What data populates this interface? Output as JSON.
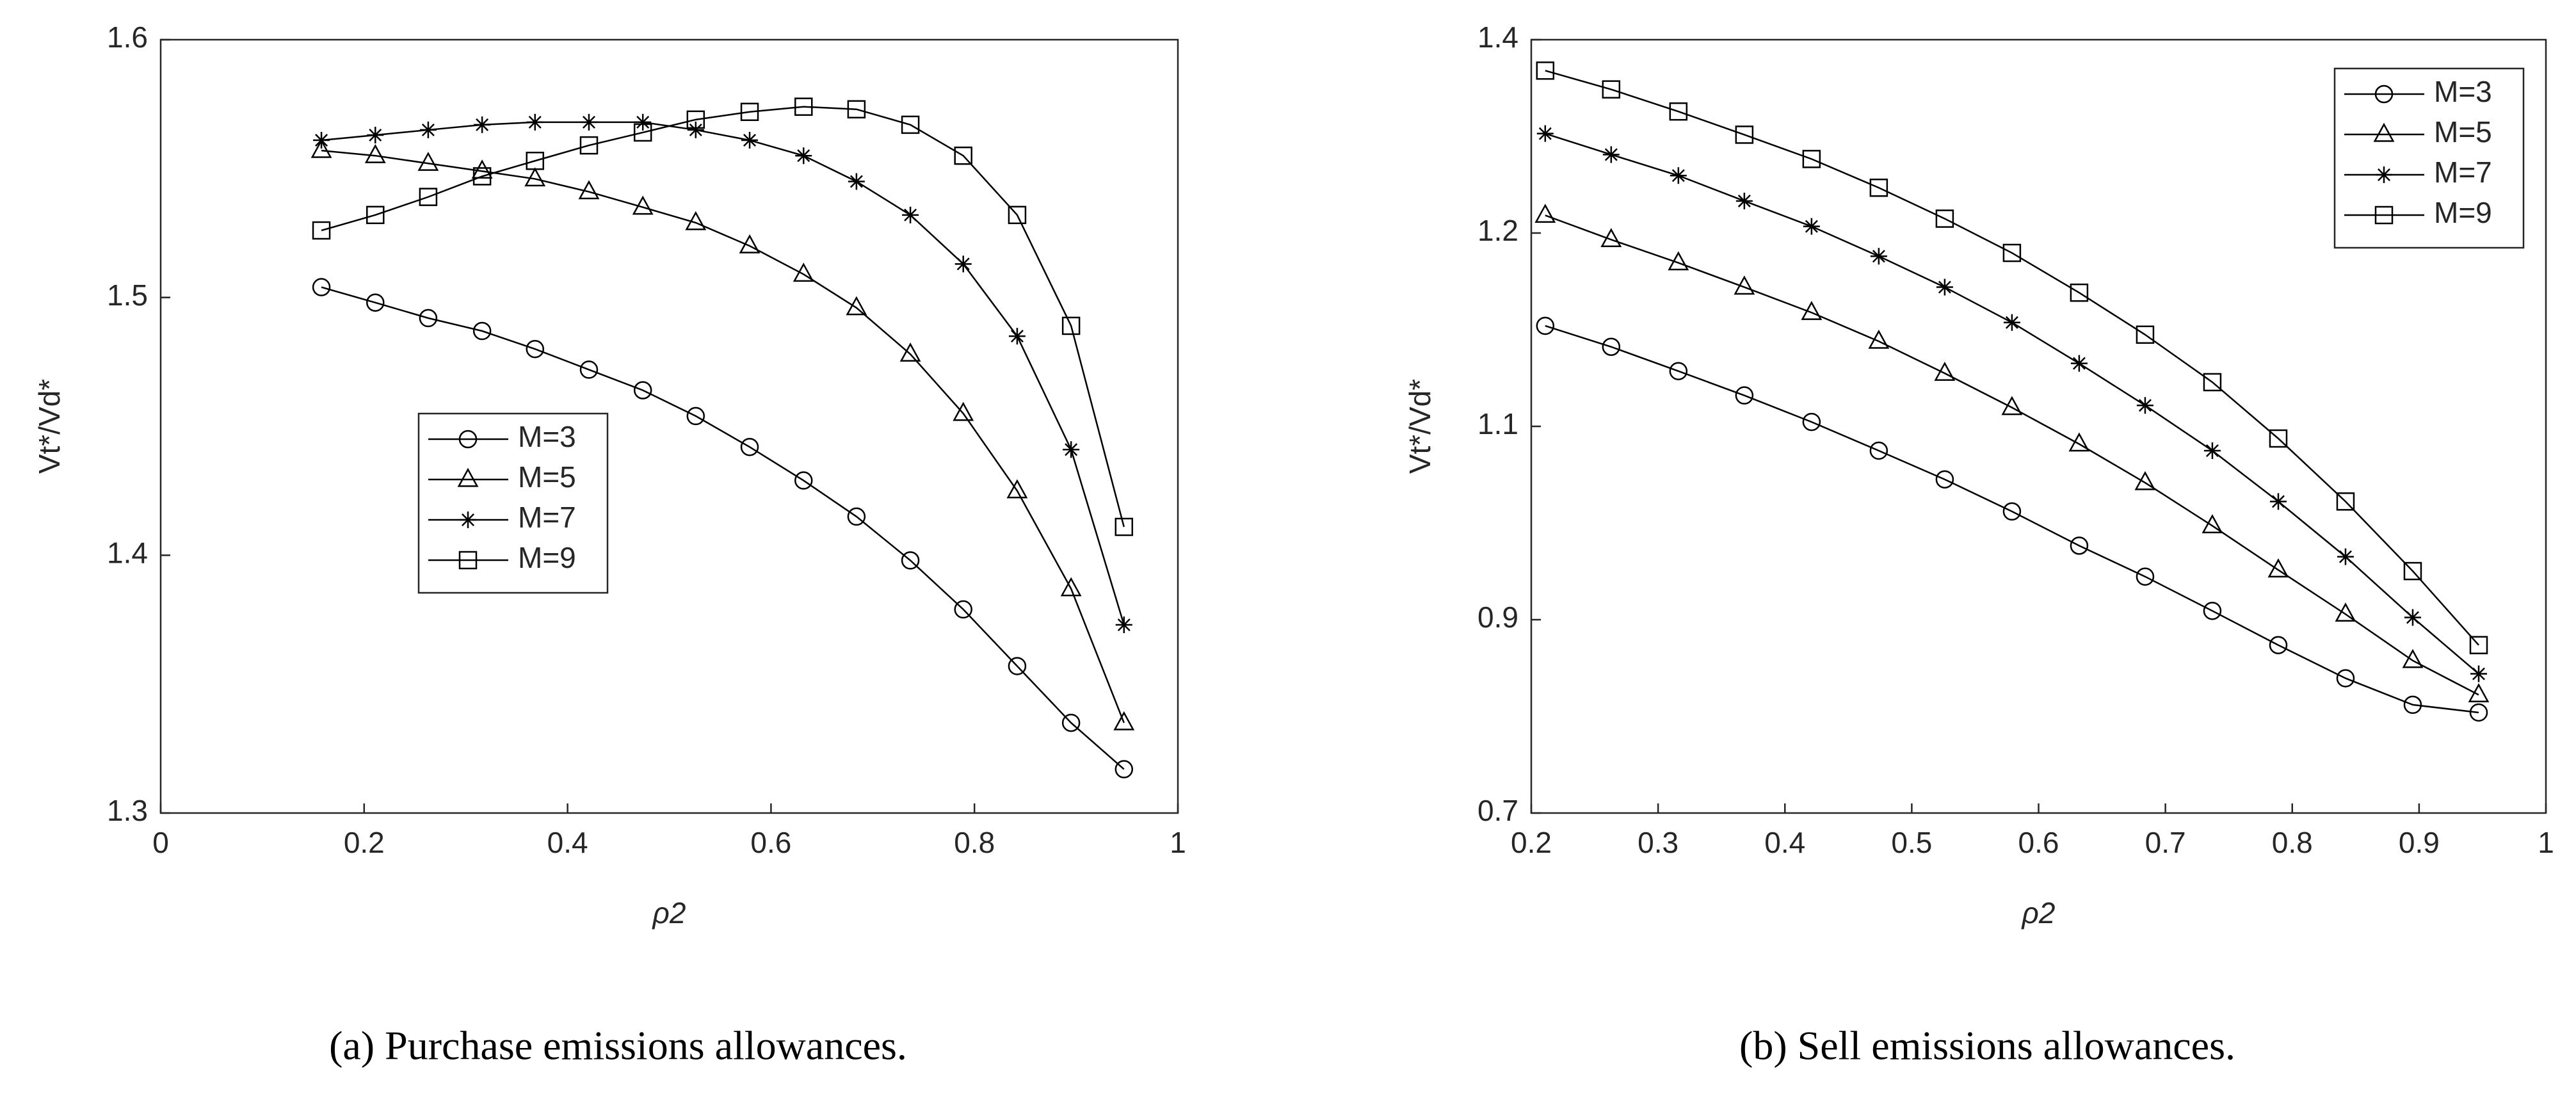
{
  "chart_data": [
    {
      "type": "line",
      "caption": "(a) Purchase emissions allowances.",
      "xlabel": "ρ2",
      "ylabel": "Vt*/Vd*",
      "xlim": [
        0,
        1
      ],
      "xticks": [
        0,
        0.2,
        0.4,
        0.6,
        0.8,
        1
      ],
      "ylim": [
        1.3,
        1.6
      ],
      "yticks": [
        1.3,
        1.4,
        1.5,
        1.6
      ],
      "legend": "west",
      "x": [
        0.158,
        0.211,
        0.263,
        0.316,
        0.368,
        0.421,
        0.474,
        0.526,
        0.579,
        0.632,
        0.684,
        0.737,
        0.789,
        0.842,
        0.895,
        0.947
      ],
      "series": [
        {
          "name": "M=3",
          "color": "#000000",
          "marker": "circle",
          "values": [
            1.504,
            1.498,
            1.492,
            1.487,
            1.48,
            1.472,
            1.464,
            1.454,
            1.442,
            1.429,
            1.415,
            1.398,
            1.379,
            1.357,
            1.335,
            1.317
          ]
        },
        {
          "name": "M=5",
          "color": "#000000",
          "marker": "triangle",
          "values": [
            1.557,
            1.555,
            1.552,
            1.549,
            1.546,
            1.541,
            1.535,
            1.529,
            1.52,
            1.509,
            1.496,
            1.478,
            1.455,
            1.425,
            1.387,
            1.335
          ]
        },
        {
          "name": "M=7",
          "color": "#000000",
          "marker": "asterisk",
          "values": [
            1.561,
            1.563,
            1.565,
            1.567,
            1.568,
            1.568,
            1.568,
            1.565,
            1.561,
            1.555,
            1.545,
            1.532,
            1.513,
            1.485,
            1.441,
            1.373
          ]
        },
        {
          "name": "M=9",
          "color": "#000000",
          "marker": "square",
          "values": [
            1.526,
            1.532,
            1.539,
            1.547,
            1.553,
            1.559,
            1.564,
            1.569,
            1.572,
            1.574,
            1.573,
            1.567,
            1.555,
            1.532,
            1.489,
            1.411
          ]
        }
      ]
    },
    {
      "type": "line",
      "caption": "(b) Sell emissions allowances.",
      "xlabel": "ρ2",
      "ylabel": "Vt*/Vd*",
      "xlim": [
        0.2,
        1
      ],
      "xticks": [
        0.2,
        0.3,
        0.4,
        0.5,
        0.6,
        0.7,
        0.8,
        0.9,
        1
      ],
      "ylim": [
        0.7,
        1.4
      ],
      "yticks": [
        0.7,
        {
          "value": 0.875,
          "label": "0.9"
        },
        {
          "value": 1.05,
          "label": "1.1"
        },
        {
          "value": 1.225,
          "label": "1.2"
        },
        1.4
      ],
      "legend": "northeast",
      "x": [
        0.211,
        0.263,
        0.316,
        0.368,
        0.421,
        0.474,
        0.526,
        0.579,
        0.632,
        0.684,
        0.737,
        0.789,
        0.842,
        0.895,
        0.947
      ],
      "series": [
        {
          "name": "M=3",
          "color": "#000000",
          "marker": "circle",
          "values": [
            1.141,
            1.122,
            1.1,
            1.078,
            1.054,
            1.028,
            1.002,
            0.973,
            0.942,
            0.914,
            0.883,
            0.852,
            0.822,
            0.798,
            0.791
          ]
        },
        {
          "name": "M=5",
          "color": "#000000",
          "marker": "triangle",
          "values": [
            1.241,
            1.219,
            1.198,
            1.176,
            1.153,
            1.127,
            1.098,
            1.067,
            1.034,
            0.999,
            0.96,
            0.92,
            0.88,
            0.838,
            0.807
          ]
        },
        {
          "name": "M=7",
          "color": "#000000",
          "marker": "asterisk",
          "values": [
            1.315,
            1.296,
            1.277,
            1.254,
            1.231,
            1.204,
            1.176,
            1.144,
            1.107,
            1.069,
            1.028,
            0.982,
            0.932,
            0.877,
            0.826
          ]
        },
        {
          "name": "M=9",
          "color": "#000000",
          "marker": "square",
          "values": [
            1.372,
            1.355,
            1.335,
            1.314,
            1.292,
            1.266,
            1.238,
            1.207,
            1.171,
            1.133,
            1.09,
            1.039,
            0.982,
            0.919,
            0.852
          ]
        }
      ]
    }
  ]
}
